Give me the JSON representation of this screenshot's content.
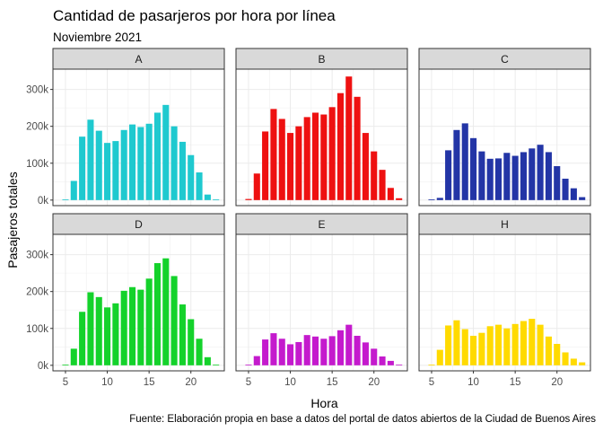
{
  "chart_data": {
    "type": "bar",
    "title": "Cantidad de pasarjeros por hora por línea",
    "subtitle": "Noviembre 2021",
    "xlabel": "Hora",
    "ylabel": "Pasajeros totales",
    "caption": "Fuente: Elaboración propia en base a datos del portal de datos abiertos de la Ciudad de Buenos Aires",
    "x": [
      5,
      6,
      7,
      8,
      9,
      10,
      11,
      12,
      13,
      14,
      15,
      16,
      17,
      18,
      19,
      20,
      21,
      22,
      23
    ],
    "xlim": [
      3.5,
      24.0
    ],
    "ylim": [
      -15000,
      355000
    ],
    "xticks": [
      5,
      10,
      15,
      20
    ],
    "xtick_labels": [
      "5",
      "10",
      "15",
      "20"
    ],
    "yticks": [
      0,
      100000,
      200000,
      300000
    ],
    "ytick_labels": [
      "0k",
      "100k",
      "200k",
      "300k"
    ],
    "grid": true,
    "legend": "none",
    "facet_rows": 2,
    "facet_cols": 3,
    "series": [
      {
        "name": "A",
        "color": "#1FC9CF",
        "values": [
          0,
          52000,
          172000,
          218000,
          188000,
          155000,
          160000,
          190000,
          205000,
          198000,
          207000,
          237000,
          258000,
          200000,
          158000,
          122000,
          75000,
          15000,
          2000
        ]
      },
      {
        "name": "B",
        "color": "#EE1111",
        "values": [
          3000,
          72000,
          186000,
          247000,
          220000,
          182000,
          200000,
          225000,
          237000,
          232000,
          252000,
          290000,
          335000,
          280000,
          182000,
          132000,
          82000,
          33000,
          5000
        ]
      },
      {
        "name": "C",
        "color": "#2335A6",
        "values": [
          0,
          6000,
          135000,
          190000,
          208000,
          168000,
          132000,
          112000,
          113000,
          128000,
          120000,
          130000,
          140000,
          150000,
          130000,
          92000,
          58000,
          32000,
          8000
        ]
      },
      {
        "name": "D",
        "color": "#14D22B",
        "values": [
          1000,
          45000,
          145000,
          198000,
          185000,
          157000,
          168000,
          202000,
          212000,
          205000,
          235000,
          277000,
          290000,
          242000,
          165000,
          125000,
          72000,
          22000,
          1000
        ]
      },
      {
        "name": "E",
        "color": "#C41ACD",
        "values": [
          0,
          25000,
          70000,
          87000,
          72000,
          57000,
          63000,
          82000,
          78000,
          72000,
          79000,
          95000,
          110000,
          80000,
          62000,
          45000,
          24000,
          12000,
          0
        ]
      },
      {
        "name": "H",
        "color": "#FFDA00",
        "values": [
          0,
          42000,
          108000,
          122000,
          98000,
          80000,
          88000,
          106000,
          110000,
          100000,
          112000,
          120000,
          126000,
          110000,
          78000,
          58000,
          35000,
          18000,
          8000
        ]
      }
    ]
  }
}
